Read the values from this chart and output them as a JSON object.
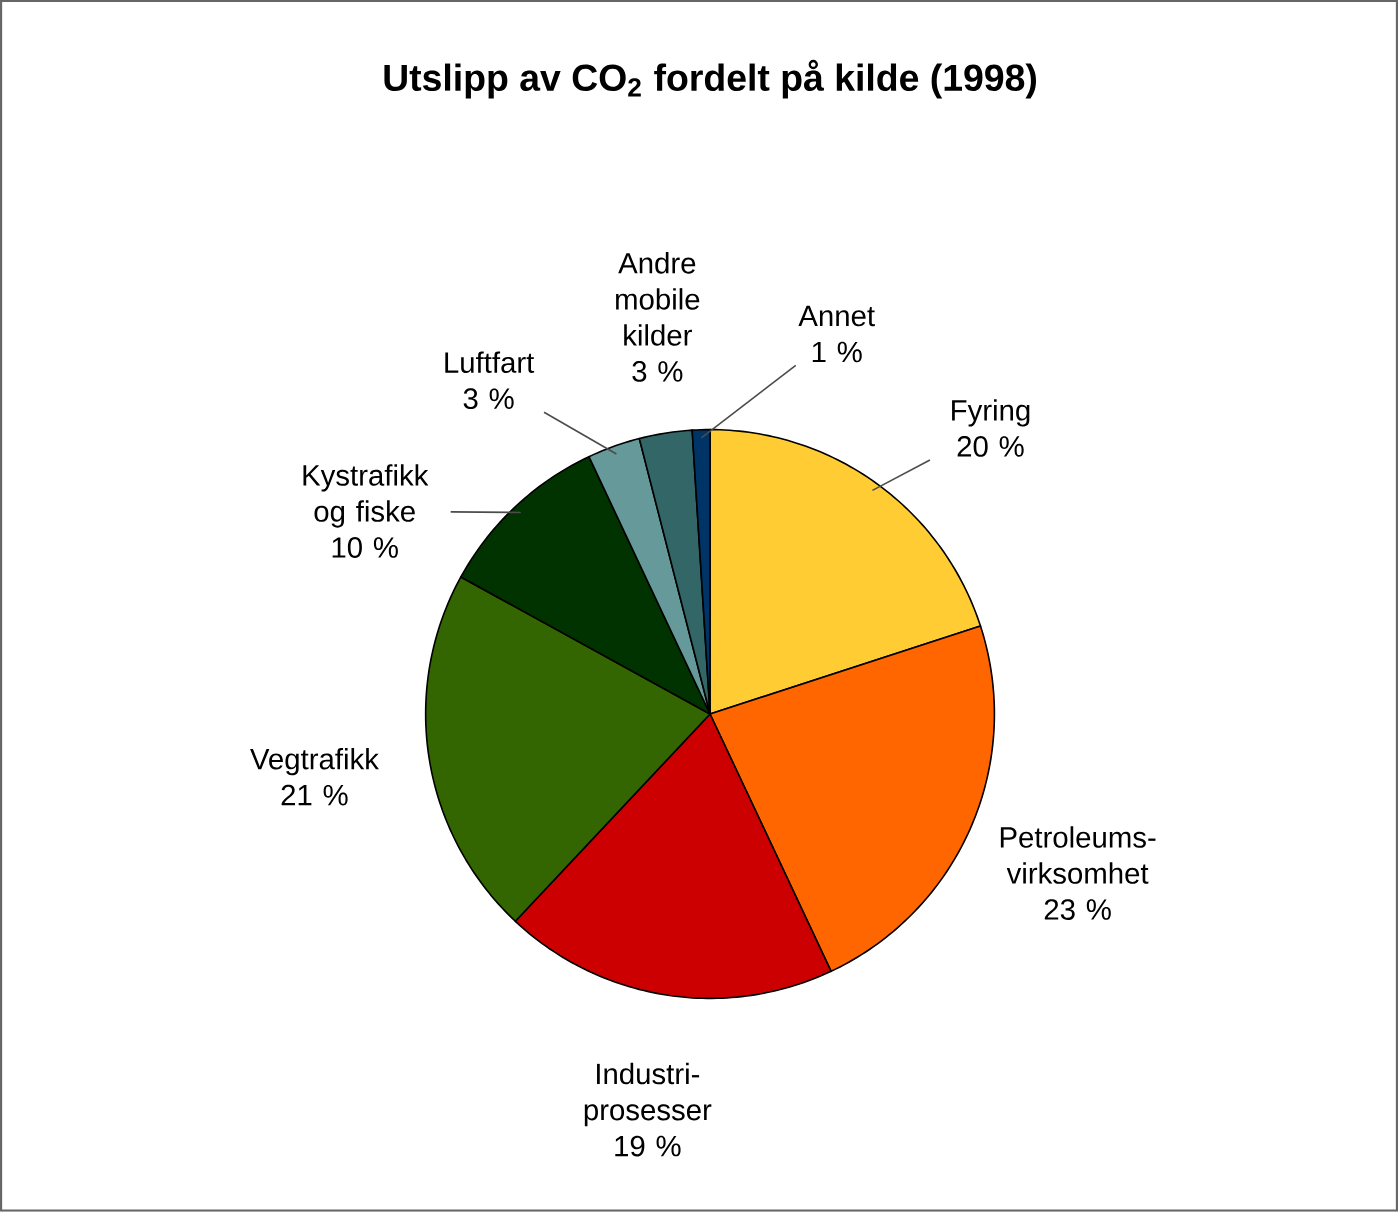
{
  "chart_data": {
    "type": "pie",
    "title": "Utslipp av CO$_{2}$ fordelt på kilde (1998)",
    "categories": [
      "Fyring",
      "Petroleums-virksomhet",
      "Industri-prosesser",
      "Vegtrafikk",
      "Kystrafikk og fiske",
      "Luftfart",
      "Andre mobile kilder",
      "Annet"
    ],
    "values": [
      20,
      23,
      19,
      21,
      10,
      3,
      3,
      1
    ],
    "colors": [
      "#ffcc33",
      "#ff6600",
      "#cc0000",
      "#336600",
      "#003300",
      "#669999",
      "#336666",
      "#003366"
    ],
    "value_labels": [
      "20 %",
      "23 %",
      "19 %",
      "21 %",
      "10 %",
      "3 %",
      "3 %",
      "1 %"
    ]
  }
}
